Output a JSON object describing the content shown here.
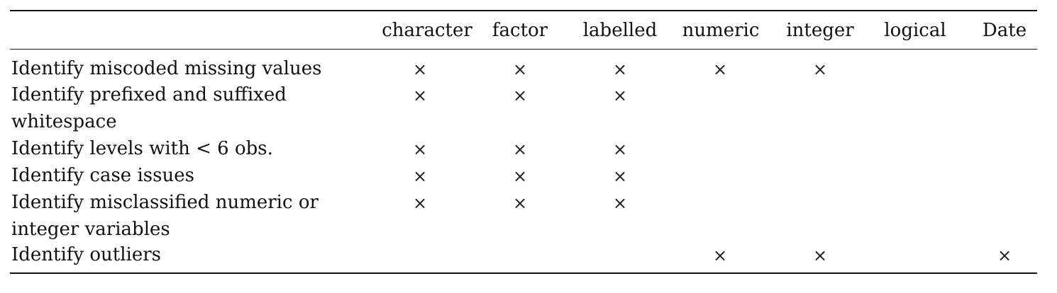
{
  "table": {
    "columns": [
      "character",
      "factor",
      "labelled",
      "numeric",
      "integer",
      "logical",
      "Date"
    ],
    "mark_symbol": "×",
    "rows": [
      {
        "label": "Identify miscoded missing values",
        "marks": [
          true,
          true,
          true,
          true,
          true,
          false,
          false
        ]
      },
      {
        "label": "Identify prefixed and suffixed whitespace",
        "marks": [
          true,
          true,
          true,
          false,
          false,
          false,
          false
        ]
      },
      {
        "label": "Identify levels with < 6 obs.",
        "marks": [
          true,
          true,
          true,
          false,
          false,
          false,
          false
        ]
      },
      {
        "label": "Identify case issues",
        "marks": [
          true,
          true,
          true,
          false,
          false,
          false,
          false
        ]
      },
      {
        "label": "Identify misclassified numeric or integer variables",
        "marks": [
          true,
          true,
          true,
          false,
          false,
          false,
          false
        ]
      },
      {
        "label": "Identify outliers",
        "marks": [
          false,
          false,
          false,
          true,
          true,
          false,
          true
        ]
      }
    ]
  }
}
